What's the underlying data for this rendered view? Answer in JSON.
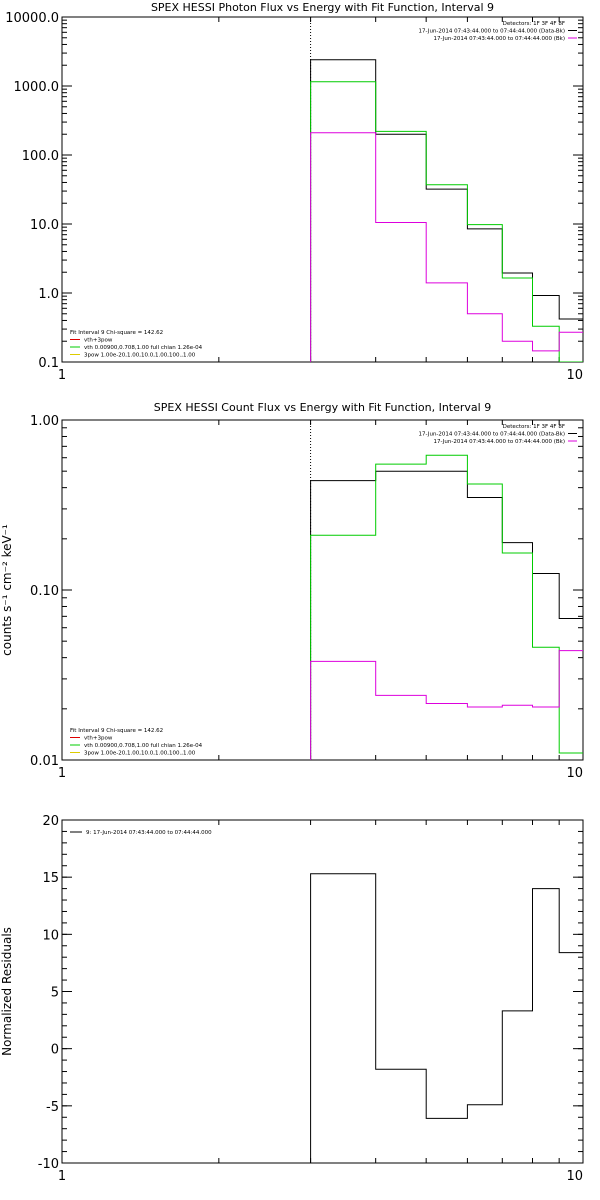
{
  "chart_data": [
    {
      "type": "line",
      "title": "SPEX HESSI Photon Flux vs Energy with Fit Function, Interval 9",
      "ylabel": "",
      "xscale": "log",
      "yscale": "log",
      "xlim": [
        1,
        10
      ],
      "ylim": [
        0.1,
        10000
      ],
      "x_ticks": [
        1,
        10
      ],
      "y_ticks": [
        0.1,
        1,
        10,
        100,
        1000,
        10000
      ],
      "x_tick_labels": [
        "1",
        "10"
      ],
      "y_tick_labels": [
        "0.1",
        "1.0",
        "10.0",
        "100.0",
        "1000.0",
        "10000.0"
      ],
      "vline": 3,
      "bin_edges": [
        3,
        4,
        5,
        6,
        7,
        8,
        9,
        10
      ],
      "series": [
        {
          "color": "#000000",
          "values": [
            2400,
            200,
            32,
            8.5,
            1.95,
            0.92,
            0.42
          ]
        },
        {
          "color": "#00cc00",
          "values": [
            1150,
            220,
            37,
            9.8,
            1.65,
            0.33,
            0.1
          ]
        },
        {
          "color": "#dd00dd",
          "values": [
            210,
            10.5,
            1.4,
            0.5,
            0.2,
            0.145,
            0.27
          ]
        }
      ],
      "legend_top": {
        "position": "top-right",
        "lines": [
          {
            "text": "Detectors: 1F 3F 4F 8F",
            "color": ""
          },
          {
            "text": "17-Jun-2014 07:43:44.000 to 07:44:44.000 (Data-Bk)",
            "color": "#000000"
          },
          {
            "text": "17-Jun-2014 07:43:44.000 to 07:44:44.000 (Bk)",
            "color": "#dd00dd"
          }
        ]
      },
      "legend_bottom": {
        "position": "bottom-left",
        "lines": [
          {
            "text": "Fit Interval 9   Chi-square = 142.62",
            "color": ""
          },
          {
            "text": "vth+3pow",
            "color": "#dd0000"
          },
          {
            "text": "vth 0.00900,0.708,1.00  full chian 1.26e-04",
            "color": "#00cc00"
          },
          {
            "text": "3pow 1.00e-20,1.00,10.0,1.00,100.,1.00",
            "color": "#ddcc00"
          }
        ]
      }
    },
    {
      "type": "line",
      "title": "SPEX HESSI Count Flux vs Energy with Fit Function, Interval 9",
      "ylabel": "counts s⁻¹ cm⁻² keV⁻¹",
      "xscale": "log",
      "yscale": "log",
      "xlim": [
        1,
        10
      ],
      "ylim": [
        0.01,
        1.0
      ],
      "x_ticks": [
        1,
        10
      ],
      "y_ticks": [
        0.01,
        0.1,
        1.0
      ],
      "x_tick_labels": [
        "1",
        "10"
      ],
      "y_tick_labels": [
        "0.01",
        "0.10",
        "1.00"
      ],
      "vline": 3,
      "bin_edges": [
        3,
        4,
        5,
        6,
        7,
        8,
        9,
        10
      ],
      "series": [
        {
          "color": "#000000",
          "values": [
            0.44,
            0.5,
            0.5,
            0.35,
            0.19,
            0.125,
            0.068
          ]
        },
        {
          "color": "#00cc00",
          "values": [
            0.21,
            0.55,
            0.62,
            0.42,
            0.165,
            0.046,
            0.011
          ]
        },
        {
          "color": "#dd00dd",
          "values": [
            0.038,
            0.024,
            0.0215,
            0.0205,
            0.021,
            0.0205,
            0.044
          ]
        }
      ],
      "legend_top": {
        "position": "top-right",
        "lines": [
          {
            "text": "Detectors: 1F 3F 4F 8F",
            "color": ""
          },
          {
            "text": "17-Jun-2014 07:43:44.000 to 07:44:44.000 (Data-Bk)",
            "color": "#000000"
          },
          {
            "text": "17-Jun-2014 07:43:44.000 to 07:44:44.000 (Bk)",
            "color": "#dd00dd"
          }
        ]
      },
      "legend_bottom": {
        "position": "bottom-left",
        "lines": [
          {
            "text": "Fit Interval 9   Chi-square = 142.62",
            "color": ""
          },
          {
            "text": "vth+3pow",
            "color": "#dd0000"
          },
          {
            "text": "vth 0.00900,0.708,1.00  full chian 1.26e-04",
            "color": "#00cc00"
          },
          {
            "text": "3pow 1.00e-20,1.00,10.0,1.00,100.,1.00",
            "color": "#ddcc00"
          }
        ]
      }
    },
    {
      "type": "line",
      "title": "",
      "ylabel": "Normalized Residuals",
      "xscale": "log",
      "yscale": "linear",
      "xlim": [
        1,
        10
      ],
      "ylim": [
        -10,
        20
      ],
      "x_ticks": [
        1,
        10
      ],
      "y_ticks": [
        -10,
        -5,
        0,
        5,
        10,
        15,
        20
      ],
      "x_tick_labels": [
        "1",
        "10"
      ],
      "y_tick_labels": [
        "-10",
        "-5",
        "0",
        "5",
        "10",
        "15",
        "20"
      ],
      "bin_edges": [
        3,
        4,
        5,
        6,
        7,
        8,
        9,
        10
      ],
      "series": [
        {
          "color": "#000000",
          "values": [
            15.3,
            -1.8,
            -6.1,
            -4.9,
            3.3,
            14.0,
            8.4
          ]
        }
      ],
      "legend_top": {
        "position": "top-left",
        "lines": [
          {
            "text": "9: 17-Jun-2014 07:43:44.000 to 07:44:44.000",
            "color": "#000000"
          }
        ]
      }
    }
  ]
}
